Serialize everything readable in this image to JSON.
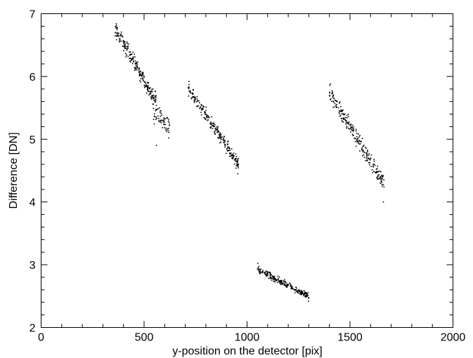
{
  "chart_data": {
    "type": "scatter",
    "title": "",
    "xlabel": "y-position on the detector [pix]",
    "ylabel": "Difference [DN]",
    "xlim": [
      0,
      2000
    ],
    "ylim": [
      2,
      7
    ],
    "x_ticks_major": [
      0,
      500,
      1000,
      1500,
      2000
    ],
    "y_ticks_major": [
      2,
      3,
      4,
      5,
      6,
      7
    ],
    "x_tick_labels": [
      "0",
      "500",
      "1000",
      "1500",
      "2000"
    ],
    "y_tick_labels": [
      "2",
      "3",
      "4",
      "5",
      "6",
      "7"
    ],
    "grid": false,
    "marker_color": "#000000",
    "clusters": [
      {
        "x_range": [
          360,
          560
        ],
        "trend": [
          [
            360,
            6.75
          ],
          [
            560,
            5.6
          ]
        ],
        "spread": 0.12,
        "count": 220
      },
      {
        "x_range": [
          545,
          625
        ],
        "trend": [
          [
            545,
            5.45
          ],
          [
            625,
            5.2
          ]
        ],
        "spread": 0.17,
        "count": 60
      },
      {
        "x_range": [
          715,
          960
        ],
        "trend": [
          [
            715,
            5.8
          ],
          [
            960,
            4.6
          ]
        ],
        "spread": 0.1,
        "count": 230
      },
      {
        "x_range": [
          1050,
          1300
        ],
        "trend": [
          [
            1050,
            2.92
          ],
          [
            1300,
            2.5
          ]
        ],
        "spread": 0.05,
        "count": 230
      },
      {
        "x_range": [
          1400,
          1665
        ],
        "trend": [
          [
            1400,
            5.75
          ],
          [
            1665,
            4.3
          ]
        ],
        "spread": 0.13,
        "count": 240
      }
    ],
    "extremes": [
      {
        "x": 365,
        "y": 6.84
      },
      {
        "x": 560,
        "y": 4.9
      },
      {
        "x": 620,
        "y": 5.02
      },
      {
        "x": 718,
        "y": 5.92
      },
      {
        "x": 955,
        "y": 4.45
      },
      {
        "x": 1052,
        "y": 3.02
      },
      {
        "x": 1298,
        "y": 2.42
      },
      {
        "x": 1405,
        "y": 5.88
      },
      {
        "x": 1662,
        "y": 4.0
      }
    ]
  }
}
